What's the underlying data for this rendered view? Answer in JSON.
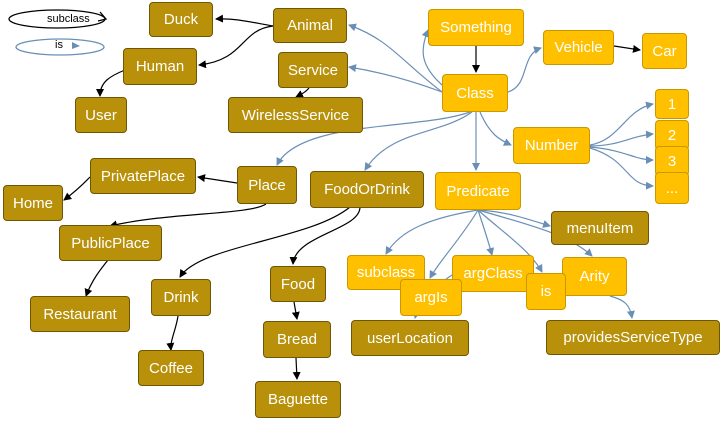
{
  "legend": {
    "subclass_label": "subclass",
    "is_label": "is"
  },
  "nodes": {
    "duck": "Duck",
    "animal": "Animal",
    "human": "Human",
    "user": "User",
    "service": "Service",
    "wireless_service": "WirelessService",
    "something": "Something",
    "class": "Class",
    "vehicle": "Vehicle",
    "car": "Car",
    "number": "Number",
    "n1": "1",
    "n2": "2",
    "n3": "3",
    "ndots": "...",
    "private_place": "PrivatePlace",
    "place": "Place",
    "home": "Home",
    "public_place": "PublicPlace",
    "restaurant": "Restaurant",
    "food_or_drink": "FoodOrDrink",
    "drink": "Drink",
    "coffee": "Coffee",
    "food": "Food",
    "bread": "Bread",
    "baguette": "Baguette",
    "predicate": "Predicate",
    "menu_item": "menuItem",
    "subclass": "subclass",
    "arg_class": "argClass",
    "args": "argIs",
    "is": "is",
    "arity": "Arity",
    "user_location": "userLocation",
    "provides_service_type": "providesServiceType"
  },
  "colors": {
    "dark_node": "#B8900A",
    "light_node": "#FFC000",
    "subclass_edge": "#000000",
    "is_edge": "#6A8FB7"
  }
}
